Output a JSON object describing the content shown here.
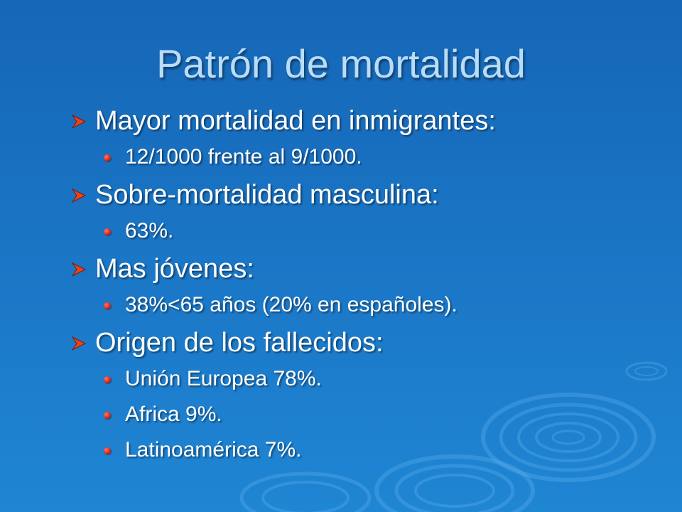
{
  "slide": {
    "title": "Patrón de mortalidad",
    "bullets": [
      {
        "text": "Mayor mortalidad en inmigrantes:",
        "subitems": [
          "12/1000 frente al 9/1000."
        ]
      },
      {
        "text": "Sobre-mortalidad masculina:",
        "subitems": [
          "63%."
        ]
      },
      {
        "text": "Mas jóvenes:",
        "subitems": [
          "38%<65 años (20% en españoles)."
        ]
      },
      {
        "text": "Origen de los fallecidos:",
        "subitems": [
          "Unión Europea 78%.",
          "Africa 9%.",
          "Latinoamérica 7%."
        ]
      }
    ]
  },
  "colors": {
    "background": "#1a74c4",
    "title": "#b9dcf7",
    "text": "#ffffff",
    "bullet_arrow": "#e8431f",
    "bullet_dot": "#e0281c"
  },
  "icons": {
    "level1": "arrow-bullet-icon",
    "level2": "dot-bullet-icon"
  }
}
